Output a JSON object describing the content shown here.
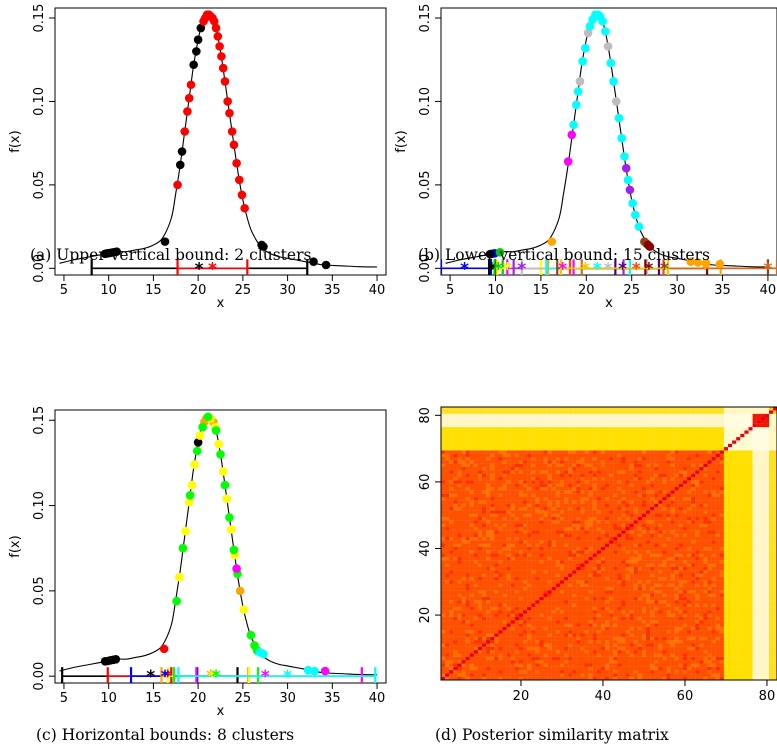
{
  "chart_data": [
    {
      "type": "line",
      "title": "",
      "caption": "(a) Upper vertical bound: 2 clusters",
      "xlabel": "x",
      "ylabel": "f(x)",
      "xlim": [
        4,
        41
      ],
      "ylim": [
        -0.004,
        0.156
      ],
      "xticks": [
        5,
        10,
        15,
        20,
        25,
        30,
        35,
        40
      ],
      "yticks": [
        0.0,
        0.05,
        0.1,
        0.15
      ],
      "ytick_labels": [
        "0.00",
        "0.05",
        "0.10",
        "0.15"
      ],
      "density_curve": {
        "color": "#000000",
        "x": [
          4.5,
          6,
          8,
          9,
          10,
          11,
          12,
          13,
          14,
          15,
          16,
          17,
          17.5,
          18,
          18.5,
          19,
          19.5,
          20,
          20.5,
          21,
          21.5,
          22,
          22.5,
          23,
          23.5,
          24,
          24.5,
          25,
          25.5,
          26,
          27,
          28,
          29,
          30,
          31,
          32,
          33,
          34,
          36,
          38,
          40
        ],
        "y": [
          0.003,
          0.005,
          0.007,
          0.008,
          0.009,
          0.01,
          0.01,
          0.011,
          0.012,
          0.014,
          0.018,
          0.03,
          0.045,
          0.062,
          0.082,
          0.102,
          0.122,
          0.137,
          0.148,
          0.152,
          0.151,
          0.144,
          0.13,
          0.112,
          0.093,
          0.074,
          0.056,
          0.041,
          0.03,
          0.022,
          0.013,
          0.009,
          0.007,
          0.006,
          0.005,
          0.004,
          0.003,
          0.002,
          0.0015,
          0.001,
          0.0008
        ]
      },
      "clusters": [
        {
          "color": "#000000",
          "interval": [
            8.1,
            32.2
          ],
          "estimate": 20.1,
          "points": [
            [
              9.6,
              0.0087
            ],
            [
              9.8,
              0.0089
            ],
            [
              10.0,
              0.0091
            ],
            [
              10.3,
              0.0094
            ],
            [
              10.6,
              0.0097
            ],
            [
              10.9,
              0.01
            ],
            [
              16.3,
              0.016
            ],
            [
              18.0,
              0.062
            ],
            [
              18.2,
              0.07
            ],
            [
              19.5,
              0.122
            ],
            [
              19.8,
              0.13
            ],
            [
              20.0,
              0.137
            ],
            [
              20.3,
              0.144
            ],
            [
              27.1,
              0.014
            ],
            [
              27.3,
              0.013
            ],
            [
              32.9,
              0.004
            ],
            [
              34.3,
              0.002
            ]
          ]
        },
        {
          "color": "#FF0000",
          "interval": [
            17.7,
            25.5
          ],
          "estimate": 21.6,
          "points": [
            [
              17.7,
              0.05
            ],
            [
              18.5,
              0.082
            ],
            [
              18.8,
              0.094
            ],
            [
              19.0,
              0.102
            ],
            [
              19.2,
              0.11
            ],
            [
              20.6,
              0.148
            ],
            [
              20.8,
              0.15
            ],
            [
              21.0,
              0.152
            ],
            [
              21.2,
              0.152
            ],
            [
              21.4,
              0.151
            ],
            [
              21.6,
              0.15
            ],
            [
              21.8,
              0.148
            ],
            [
              22.0,
              0.144
            ],
            [
              22.2,
              0.139
            ],
            [
              22.4,
              0.133
            ],
            [
              22.6,
              0.127
            ],
            [
              22.8,
              0.12
            ],
            [
              23.0,
              0.112
            ],
            [
              23.3,
              0.1
            ],
            [
              23.5,
              0.093
            ],
            [
              23.8,
              0.082
            ],
            [
              24.0,
              0.074
            ],
            [
              24.3,
              0.063
            ],
            [
              24.6,
              0.053
            ],
            [
              24.9,
              0.044
            ],
            [
              25.2,
              0.036
            ]
          ]
        }
      ]
    },
    {
      "type": "line",
      "title": "",
      "caption": "(b) Lower vertical bound: 15 clusters",
      "xlabel": "x",
      "ylabel": "f(x)",
      "xlim": [
        4,
        41
      ],
      "ylim": [
        -0.004,
        0.156
      ],
      "xticks": [
        5,
        10,
        15,
        20,
        25,
        30,
        35,
        40
      ],
      "yticks": [
        0.0,
        0.05,
        0.1,
        0.15
      ],
      "ytick_labels": [
        "0.00",
        "0.05",
        "0.10",
        "0.15"
      ],
      "clusters": [
        {
          "color": "#0000FF",
          "interval": [
            4.0,
            9.5
          ],
          "estimate": 6.6,
          "points": [
            [
              9.6,
              0.0087
            ],
            [
              9.9,
              0.009
            ]
          ]
        },
        {
          "color": "#000000",
          "interval": [
            9.3,
            10.0
          ],
          "estimate": 9.6,
          "points": [
            [
              9.4,
              0.0085
            ]
          ]
        },
        {
          "color": "#00CD00",
          "interval": [
            9.9,
            10.8
          ],
          "estimate": 10.3,
          "points": [
            [
              10.5,
              0.0096
            ]
          ]
        },
        {
          "color": "#FFFF00",
          "interval": [
            10.2,
            15.0
          ],
          "estimate": 11.3,
          "points": []
        },
        {
          "color": "#FF00FF",
          "interval": [
            11.3,
            18.6
          ],
          "estimate": 17.4,
          "points": [
            [
              18.0,
              0.064
            ],
            [
              18.4,
              0.08
            ]
          ]
        },
        {
          "color": "#A020F0",
          "interval": [
            12.0,
            24.1
          ],
          "estimate": 12.9,
          "points": [
            [
              24.4,
              0.06
            ],
            [
              24.8,
              0.047
            ]
          ]
        },
        {
          "color": "#BEBEBE",
          "interval": [
            12.9,
            26.7
          ],
          "estimate": 22.4,
          "points": [
            [
              19.3,
              0.112
            ],
            [
              20.2,
              0.141
            ],
            [
              22.4,
              0.133
            ],
            [
              23.3,
              0.1
            ]
          ]
        },
        {
          "color": "#FFA500",
          "interval": [
            15.8,
            34.8
          ],
          "estimate": 33.1,
          "points": [
            [
              16.2,
              0.016
            ],
            [
              31.5,
              0.004
            ],
            [
              32.3,
              0.0035
            ],
            [
              33.2,
              0.003
            ],
            [
              34.7,
              0.0025
            ]
          ]
        },
        {
          "color": "#00FFFF",
          "interval": [
            15.6,
            24.8
          ],
          "estimate": 21.2,
          "points": [
            [
              18.6,
              0.086
            ],
            [
              18.9,
              0.098
            ],
            [
              19.1,
              0.106
            ],
            [
              19.6,
              0.124
            ],
            [
              19.9,
              0.132
            ],
            [
              20.4,
              0.145
            ],
            [
              20.7,
              0.149
            ],
            [
              21.0,
              0.152
            ],
            [
              21.3,
              0.152
            ],
            [
              21.5,
              0.151
            ],
            [
              21.8,
              0.148
            ],
            [
              22.1,
              0.142
            ],
            [
              22.7,
              0.123
            ],
            [
              23.0,
              0.112
            ],
            [
              23.6,
              0.09
            ],
            [
              23.9,
              0.078
            ],
            [
              24.2,
              0.067
            ],
            [
              24.6,
              0.053
            ],
            [
              25.1,
              0.039
            ],
            [
              25.4,
              0.032
            ],
            [
              25.8,
              0.025
            ]
          ]
        },
        {
          "color": "#8B4513",
          "interval": [
            16.8,
            40.0
          ],
          "estimate": 28.6,
          "points": [
            [
              26.4,
              0.016
            ],
            [
              26.6,
              0.015
            ]
          ]
        },
        {
          "color": "#8B0000",
          "interval": [
            26.5,
            33.3
          ],
          "estimate": 26.9,
          "points": [
            [
              26.8,
              0.014
            ],
            [
              27.0,
              0.013
            ]
          ]
        },
        {
          "color": "#4B0082",
          "interval": [
            23.2,
            28.0
          ],
          "estimate": 24.0,
          "points": []
        },
        {
          "color": "#D2691E",
          "interval": [
            19.5,
            41.0
          ],
          "estimate": 40.0,
          "points": []
        },
        {
          "color": "#FF4500",
          "interval": [
            18.2,
            28.5
          ],
          "estimate": 25.5,
          "points": []
        },
        {
          "color": "#EEC900",
          "interval": [
            17.2,
            29.0
          ],
          "estimate": 19.9,
          "points": []
        }
      ]
    },
    {
      "type": "line",
      "title": "",
      "caption": "(c) Horizontal bounds: 8 clusters",
      "xlabel": "x",
      "ylabel": "f(x)",
      "xlim": [
        4,
        41
      ],
      "ylim": [
        -0.004,
        0.156
      ],
      "xticks": [
        5,
        10,
        15,
        20,
        25,
        30,
        35,
        40
      ],
      "yticks": [
        0.0,
        0.05,
        0.1,
        0.15
      ],
      "ytick_labels": [
        "0.00",
        "0.05",
        "0.10",
        "0.15"
      ],
      "clusters": [
        {
          "color": "#000000",
          "interval": [
            4.8,
            24.4
          ],
          "estimate": 14.7,
          "points": [
            [
              9.6,
              0.0087
            ],
            [
              9.9,
              0.0089
            ],
            [
              10.2,
              0.0093
            ],
            [
              10.5,
              0.0096
            ],
            [
              10.8,
              0.0099
            ],
            [
              20.0,
              0.137
            ]
          ]
        },
        {
          "color": "#FF0000",
          "interval": [
            9.9,
            17.0
          ],
          "estimate": 16.6,
          "points": [
            [
              16.2,
              0.016
            ]
          ]
        },
        {
          "color": "#0000FF",
          "interval": [
            12.5,
            19.9
          ],
          "estimate": 16.3,
          "points": []
        },
        {
          "color": "#FFA500",
          "interval": [
            15.9,
            25.6
          ],
          "estimate": 21.4,
          "points": [
            [
              20.7,
              0.149
            ],
            [
              20.9,
              0.151
            ],
            [
              21.7,
              0.149
            ],
            [
              24.7,
              0.05
            ]
          ]
        },
        {
          "color": "#FFFF00",
          "interval": [
            16.6,
            25.7
          ],
          "estimate": 21.6,
          "points": [
            [
              17.9,
              0.058
            ],
            [
              18.6,
              0.085
            ],
            [
              19.0,
              0.102
            ],
            [
              19.3,
              0.112
            ],
            [
              19.6,
              0.124
            ],
            [
              20.2,
              0.141
            ],
            [
              21.4,
              0.151
            ],
            [
              21.9,
              0.146
            ],
            [
              22.3,
              0.136
            ],
            [
              22.8,
              0.12
            ],
            [
              23.2,
              0.104
            ],
            [
              23.7,
              0.086
            ],
            [
              24.1,
              0.071
            ],
            [
              25.1,
              0.039
            ]
          ]
        },
        {
          "color": "#00FF00",
          "interval": [
            17.3,
            26.7
          ],
          "estimate": 22.0,
          "points": [
            [
              17.6,
              0.044
            ],
            [
              18.3,
              0.075
            ],
            [
              19.1,
              0.106
            ],
            [
              19.9,
              0.132
            ],
            [
              20.5,
              0.146
            ],
            [
              21.1,
              0.152
            ],
            [
              22.0,
              0.144
            ],
            [
              22.5,
              0.13
            ],
            [
              23.0,
              0.112
            ],
            [
              23.5,
              0.093
            ],
            [
              24.0,
              0.074
            ],
            [
              24.4,
              0.06
            ],
            [
              25.9,
              0.024
            ],
            [
              26.3,
              0.018
            ],
            [
              26.6,
              0.015
            ]
          ]
        },
        {
          "color": "#FF00FF",
          "interval": [
            19.8,
            38.3
          ],
          "estimate": 27.5,
          "points": [
            [
              24.3,
              0.063
            ],
            [
              34.2,
              0.003
            ]
          ]
        },
        {
          "color": "#00FFFF",
          "interval": [
            17.8,
            39.8
          ],
          "estimate": 30.0,
          "points": [
            [
              26.9,
              0.014
            ],
            [
              27.3,
              0.013
            ],
            [
              32.3,
              0.0035
            ],
            [
              33.0,
              0.003
            ]
          ]
        }
      ]
    },
    {
      "type": "heatmap",
      "title": "",
      "caption": "(d) Posterior similarity matrix",
      "xlabel": "",
      "ylabel": "",
      "n": 82,
      "xlim": [
        1,
        82
      ],
      "ylim": [
        1,
        82
      ],
      "xticks": [
        20,
        40,
        60,
        80
      ],
      "yticks": [
        20,
        40,
        60,
        80
      ],
      "blocks": [
        {
          "range": [
            1,
            69
          ],
          "within": "#FF5000",
          "diagonal": "#E8001A"
        },
        {
          "range": [
            70,
            76
          ],
          "within": "#FFFCD0"
        },
        {
          "range": [
            77,
            80
          ],
          "within": "#EE1800"
        },
        {
          "range": [
            81,
            82
          ],
          "within": "#FFD000"
        }
      ],
      "off_block_colors": {
        "block1_block2": "#FFE000",
        "block1_block3": "#FFF6C8",
        "block2_block3": "#FFFBE0",
        "default": "#FFFEF2"
      },
      "palette": [
        "#E8001A",
        "#FF3000",
        "#FF5000",
        "#FF7000",
        "#FFA000",
        "#FFD000",
        "#FFFF40",
        "#FFFFC8",
        "#FFFFFF"
      ]
    }
  ]
}
